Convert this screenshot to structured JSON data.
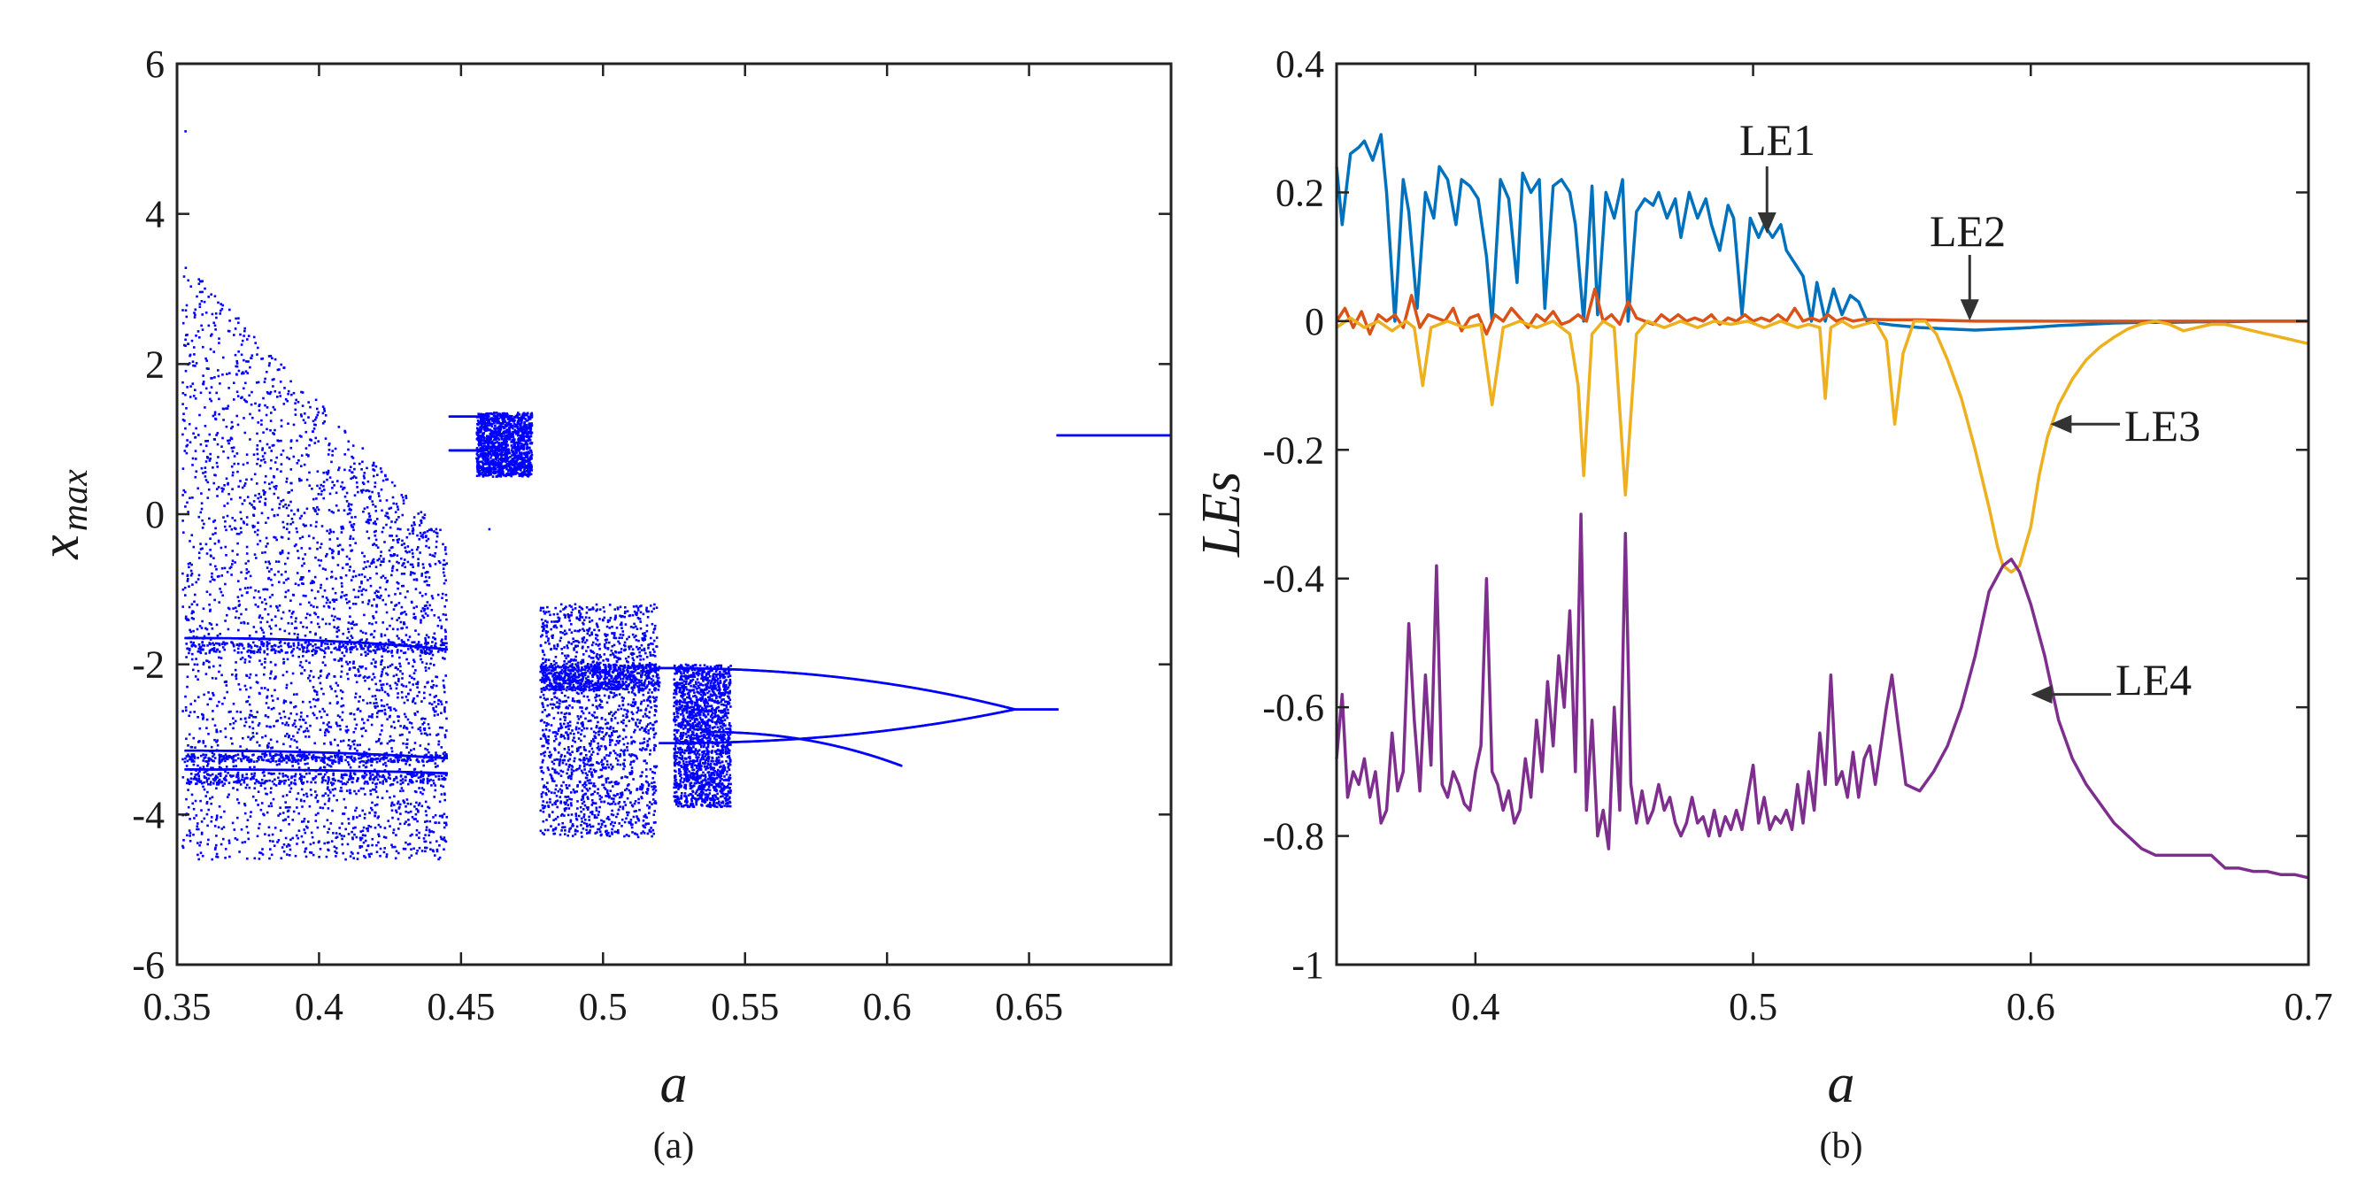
{
  "chart_data": [
    {
      "id": "a",
      "type": "scatter",
      "title": "",
      "subfigure_label": "(a)",
      "xlabel": "a",
      "ylabel_main": "x",
      "ylabel_sub": "max",
      "xlim": [
        0.35,
        0.7
      ],
      "ylim": [
        -6,
        6
      ],
      "xticks": [
        0.35,
        0.4,
        0.45,
        0.5,
        0.55,
        0.6,
        0.65
      ],
      "xtick_labels": [
        "0.35",
        "0.4",
        "0.45",
        "0.5",
        "0.55",
        "0.6",
        "0.65"
      ],
      "yticks": [
        -6,
        -4,
        -2,
        0,
        2,
        4,
        6
      ],
      "ytick_labels": [
        "-6",
        "-4",
        "-2",
        "0",
        "2",
        "4",
        "6"
      ],
      "color": "#0000ff",
      "description_series": "bifurcation diagram of local maxima of x versus parameter a",
      "regions": [
        {
          "kind": "chaos",
          "a": [
            0.352,
            0.445
          ],
          "y_low": -4.6,
          "y_high": 3.4,
          "y_high_end": -0.3
        },
        {
          "kind": "chaos-window",
          "a": [
            0.4555,
            0.475
          ],
          "y_low": 0.5,
          "y_high": 1.35
        },
        {
          "kind": "chaos",
          "a": [
            0.478,
            0.519
          ],
          "y_low": -4.3,
          "y_high": -1.2
        },
        {
          "kind": "chaos",
          "a": [
            0.525,
            0.545
          ],
          "y_low": -3.9,
          "y_high": -2.0
        }
      ],
      "branches": [
        {
          "a": [
            0.353,
            0.445
          ],
          "y": [
            -1.65,
            -1.8
          ]
        },
        {
          "a": [
            0.353,
            0.445
          ],
          "y": [
            -3.15,
            -3.25
          ]
        },
        {
          "a": [
            0.353,
            0.445
          ],
          "y": [
            -3.4,
            -3.45
          ]
        },
        {
          "a": [
            0.446,
            0.456
          ],
          "y": [
            1.3,
            1.3
          ]
        },
        {
          "a": [
            0.446,
            0.456
          ],
          "y": [
            0.85,
            0.85
          ]
        },
        {
          "a": [
            0.52,
            0.645
          ],
          "y": [
            -2.05,
            -2.6
          ]
        },
        {
          "a": [
            0.52,
            0.645
          ],
          "y": [
            -3.05,
            -2.6
          ]
        },
        {
          "a": [
            0.535,
            0.605
          ],
          "y": [
            -2.9,
            -3.35
          ]
        },
        {
          "a": [
            0.645,
            0.66
          ],
          "y": [
            -2.6,
            -2.6
          ]
        },
        {
          "a": [
            0.66,
            0.7
          ],
          "y": [
            1.05,
            1.05
          ]
        }
      ]
    },
    {
      "id": "b",
      "type": "line",
      "title": "",
      "subfigure_label": "(b)",
      "xlabel": "a",
      "ylabel": "LEs",
      "xlim": [
        0.35,
        0.7
      ],
      "ylim": [
        -1,
        0.4
      ],
      "xticks": [
        0.4,
        0.5,
        0.6,
        0.7
      ],
      "xtick_labels": [
        "0.4",
        "0.5",
        "0.6",
        "0.7"
      ],
      "yticks": [
        -1,
        -0.8,
        -0.6,
        -0.4,
        -0.2,
        0,
        0.2,
        0.4
      ],
      "ytick_labels": [
        "-1",
        "-0.8",
        "-0.6",
        "-0.4",
        "-0.2",
        "0",
        "0.2",
        "0.4"
      ],
      "series": [
        {
          "name": "LE1",
          "color": "#0072bd",
          "x": [
            0.35,
            0.352,
            0.355,
            0.358,
            0.36,
            0.363,
            0.366,
            0.368,
            0.371,
            0.374,
            0.376,
            0.379,
            0.382,
            0.385,
            0.387,
            0.39,
            0.393,
            0.395,
            0.398,
            0.401,
            0.404,
            0.406,
            0.409,
            0.412,
            0.415,
            0.417,
            0.42,
            0.423,
            0.425,
            0.428,
            0.431,
            0.434,
            0.436,
            0.439,
            0.442,
            0.444,
            0.447,
            0.45,
            0.453,
            0.455,
            0.458,
            0.461,
            0.464,
            0.466,
            0.469,
            0.472,
            0.474,
            0.477,
            0.48,
            0.483,
            0.485,
            0.488,
            0.491,
            0.493,
            0.496,
            0.499,
            0.502,
            0.504,
            0.507,
            0.51,
            0.512,
            0.515,
            0.518,
            0.521,
            0.523,
            0.526,
            0.529,
            0.532,
            0.535,
            0.538,
            0.541,
            0.545,
            0.55,
            0.56,
            0.57,
            0.58,
            0.59,
            0.6,
            0.61,
            0.62,
            0.63,
            0.64,
            0.65,
            0.66,
            0.67,
            0.68,
            0.69,
            0.7
          ],
          "y": [
            0.24,
            0.15,
            0.26,
            0.27,
            0.28,
            0.25,
            0.29,
            0.2,
            0.0,
            0.22,
            0.17,
            0.02,
            0.2,
            0.16,
            0.24,
            0.22,
            0.15,
            0.22,
            0.21,
            0.19,
            0.1,
            0.0,
            0.22,
            0.19,
            0.06,
            0.23,
            0.2,
            0.22,
            0.02,
            0.21,
            0.22,
            0.2,
            0.15,
            0.0,
            0.21,
            0.01,
            0.2,
            0.16,
            0.22,
            0.0,
            0.17,
            0.19,
            0.18,
            0.2,
            0.16,
            0.19,
            0.13,
            0.2,
            0.16,
            0.19,
            0.15,
            0.11,
            0.18,
            0.16,
            0.01,
            0.16,
            0.13,
            0.15,
            0.13,
            0.15,
            0.11,
            0.09,
            0.07,
            0.0,
            0.06,
            0.0,
            0.05,
            0.01,
            0.04,
            0.03,
            0.0,
            -0.003,
            -0.006,
            -0.01,
            -0.012,
            -0.014,
            -0.012,
            -0.01,
            -0.007,
            -0.005,
            -0.003,
            -0.002,
            -0.002,
            -0.001,
            -0.001,
            0.0,
            0.0,
            0.0
          ]
        },
        {
          "name": "LE2",
          "color": "#d95319",
          "x": [
            0.35,
            0.353,
            0.356,
            0.359,
            0.362,
            0.365,
            0.368,
            0.371,
            0.374,
            0.377,
            0.38,
            0.383,
            0.386,
            0.389,
            0.392,
            0.395,
            0.398,
            0.401,
            0.404,
            0.407,
            0.41,
            0.413,
            0.416,
            0.419,
            0.422,
            0.425,
            0.428,
            0.431,
            0.434,
            0.437,
            0.44,
            0.443,
            0.446,
            0.449,
            0.452,
            0.455,
            0.458,
            0.461,
            0.464,
            0.467,
            0.47,
            0.473,
            0.476,
            0.479,
            0.482,
            0.485,
            0.488,
            0.491,
            0.494,
            0.497,
            0.5,
            0.503,
            0.506,
            0.509,
            0.512,
            0.515,
            0.518,
            0.521,
            0.524,
            0.527,
            0.53,
            0.533,
            0.536,
            0.54,
            0.55,
            0.56,
            0.58,
            0.6,
            0.62,
            0.64,
            0.66,
            0.68,
            0.7
          ],
          "y": [
            0.0,
            0.02,
            -0.01,
            0.015,
            -0.02,
            0.01,
            0.0,
            0.01,
            -0.01,
            0.04,
            -0.01,
            0.01,
            0.005,
            0.0,
            0.02,
            -0.015,
            0.005,
            0.01,
            -0.02,
            0.01,
            0.0,
            0.02,
            0.005,
            -0.01,
            0.01,
            0.0,
            0.015,
            -0.005,
            0.0,
            0.01,
            0.0,
            0.05,
            0.0,
            0.01,
            -0.005,
            0.03,
            0.005,
            0.0,
            -0.005,
            0.01,
            0.0,
            0.01,
            0.0,
            0.005,
            0.0,
            0.01,
            -0.005,
            0.005,
            0.0,
            0.01,
            0.0,
            0.005,
            0.0,
            0.01,
            0.0,
            0.02,
            0.0,
            0.005,
            0.0,
            0.01,
            0.0,
            0.005,
            0.0,
            0.003,
            0.002,
            0.002,
            0.0,
            0.0,
            0.0,
            0.0,
            0.0,
            0.0,
            0.0
          ]
        },
        {
          "name": "LE3",
          "color": "#edb120",
          "x": [
            0.35,
            0.355,
            0.36,
            0.365,
            0.37,
            0.375,
            0.378,
            0.381,
            0.384,
            0.39,
            0.396,
            0.402,
            0.406,
            0.41,
            0.416,
            0.422,
            0.428,
            0.434,
            0.437,
            0.439,
            0.442,
            0.446,
            0.45,
            0.454,
            0.458,
            0.462,
            0.468,
            0.474,
            0.48,
            0.486,
            0.492,
            0.498,
            0.504,
            0.51,
            0.516,
            0.52,
            0.524,
            0.526,
            0.528,
            0.532,
            0.536,
            0.54,
            0.544,
            0.548,
            0.551,
            0.554,
            0.558,
            0.562,
            0.566,
            0.57,
            0.575,
            0.58,
            0.585,
            0.588,
            0.59,
            0.593,
            0.596,
            0.6,
            0.603,
            0.606,
            0.61,
            0.615,
            0.62,
            0.625,
            0.63,
            0.635,
            0.64,
            0.645,
            0.65,
            0.655,
            0.66,
            0.665,
            0.67,
            0.675,
            0.68,
            0.685,
            0.69,
            0.695,
            0.7
          ],
          "y": [
            -0.01,
            0.005,
            -0.01,
            0.0,
            -0.015,
            0.0,
            -0.01,
            -0.1,
            -0.01,
            0.0,
            -0.01,
            -0.005,
            -0.13,
            -0.01,
            0.0,
            -0.01,
            0.0,
            -0.02,
            -0.1,
            -0.24,
            -0.02,
            0.0,
            -0.01,
            -0.27,
            -0.02,
            0.0,
            -0.01,
            0.0,
            -0.01,
            0.0,
            -0.005,
            0.0,
            -0.01,
            0.0,
            -0.01,
            -0.005,
            -0.01,
            -0.12,
            -0.01,
            0.0,
            -0.01,
            -0.005,
            0.0,
            -0.03,
            -0.16,
            -0.05,
            0.0,
            0.0,
            -0.02,
            -0.06,
            -0.12,
            -0.2,
            -0.29,
            -0.35,
            -0.38,
            -0.39,
            -0.38,
            -0.32,
            -0.24,
            -0.18,
            -0.13,
            -0.09,
            -0.06,
            -0.04,
            -0.025,
            -0.012,
            -0.004,
            0.0,
            -0.005,
            -0.015,
            -0.01,
            -0.005,
            -0.005,
            -0.01,
            -0.015,
            -0.02,
            -0.025,
            -0.03,
            -0.035
          ]
        },
        {
          "name": "LE4",
          "color": "#7e2f8e",
          "x": [
            0.35,
            0.352,
            0.354,
            0.356,
            0.358,
            0.36,
            0.362,
            0.364,
            0.366,
            0.368,
            0.37,
            0.372,
            0.374,
            0.376,
            0.378,
            0.38,
            0.382,
            0.384,
            0.386,
            0.388,
            0.39,
            0.392,
            0.394,
            0.396,
            0.398,
            0.4,
            0.402,
            0.404,
            0.406,
            0.408,
            0.41,
            0.412,
            0.414,
            0.416,
            0.418,
            0.42,
            0.422,
            0.424,
            0.426,
            0.428,
            0.43,
            0.432,
            0.434,
            0.436,
            0.438,
            0.44,
            0.442,
            0.444,
            0.446,
            0.448,
            0.45,
            0.452,
            0.454,
            0.456,
            0.458,
            0.46,
            0.462,
            0.464,
            0.466,
            0.468,
            0.47,
            0.472,
            0.474,
            0.476,
            0.478,
            0.48,
            0.482,
            0.484,
            0.486,
            0.488,
            0.49,
            0.492,
            0.494,
            0.496,
            0.498,
            0.5,
            0.502,
            0.504,
            0.506,
            0.508,
            0.51,
            0.512,
            0.514,
            0.516,
            0.518,
            0.52,
            0.522,
            0.524,
            0.526,
            0.528,
            0.53,
            0.532,
            0.534,
            0.536,
            0.538,
            0.54,
            0.542,
            0.544,
            0.546,
            0.548,
            0.55,
            0.552,
            0.555,
            0.56,
            0.565,
            0.57,
            0.575,
            0.58,
            0.585,
            0.59,
            0.593,
            0.596,
            0.6,
            0.605,
            0.61,
            0.615,
            0.62,
            0.625,
            0.63,
            0.635,
            0.64,
            0.645,
            0.65,
            0.655,
            0.66,
            0.665,
            0.67,
            0.675,
            0.68,
            0.685,
            0.69,
            0.695,
            0.7
          ],
          "y": [
            -0.68,
            -0.58,
            -0.74,
            -0.7,
            -0.72,
            -0.68,
            -0.74,
            -0.7,
            -0.78,
            -0.76,
            -0.64,
            -0.73,
            -0.7,
            -0.47,
            -0.62,
            -0.73,
            -0.55,
            -0.69,
            -0.38,
            -0.72,
            -0.74,
            -0.7,
            -0.72,
            -0.75,
            -0.76,
            -0.7,
            -0.66,
            -0.4,
            -0.7,
            -0.72,
            -0.76,
            -0.73,
            -0.78,
            -0.76,
            -0.68,
            -0.74,
            -0.62,
            -0.7,
            -0.56,
            -0.66,
            -0.52,
            -0.6,
            -0.45,
            -0.7,
            -0.3,
            -0.76,
            -0.62,
            -0.8,
            -0.76,
            -0.82,
            -0.6,
            -0.76,
            -0.33,
            -0.72,
            -0.78,
            -0.73,
            -0.78,
            -0.76,
            -0.72,
            -0.76,
            -0.74,
            -0.78,
            -0.8,
            -0.78,
            -0.74,
            -0.78,
            -0.77,
            -0.8,
            -0.76,
            -0.8,
            -0.77,
            -0.79,
            -0.76,
            -0.79,
            -0.74,
            -0.69,
            -0.78,
            -0.74,
            -0.79,
            -0.77,
            -0.78,
            -0.76,
            -0.79,
            -0.72,
            -0.78,
            -0.7,
            -0.76,
            -0.64,
            -0.72,
            -0.55,
            -0.72,
            -0.7,
            -0.74,
            -0.67,
            -0.74,
            -0.68,
            -0.66,
            -0.72,
            -0.66,
            -0.6,
            -0.55,
            -0.62,
            -0.72,
            -0.73,
            -0.7,
            -0.66,
            -0.6,
            -0.52,
            -0.42,
            -0.38,
            -0.37,
            -0.39,
            -0.44,
            -0.52,
            -0.62,
            -0.68,
            -0.72,
            -0.75,
            -0.78,
            -0.8,
            -0.82,
            -0.83,
            -0.83,
            -0.83,
            -0.83,
            -0.83,
            -0.85,
            -0.85,
            -0.855,
            -0.855,
            -0.86,
            -0.86,
            -0.865
          ]
        }
      ],
      "annotations": [
        {
          "text": "LE1",
          "target": [
            0.505,
            0.14
          ]
        },
        {
          "text": "LE2",
          "target": [
            0.578,
            0.005
          ]
        },
        {
          "text": "LE3",
          "target": [
            0.608,
            -0.16
          ]
        },
        {
          "text": "LE4",
          "target": [
            0.601,
            -0.58
          ]
        }
      ]
    }
  ]
}
